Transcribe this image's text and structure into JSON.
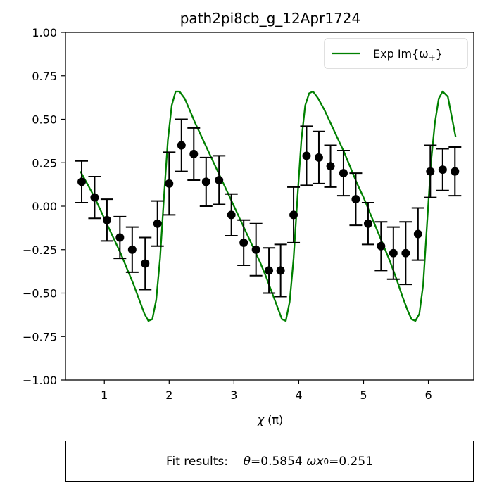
{
  "chart_data": {
    "type": "line",
    "title": "path2pi8cb_g_12Apr1724",
    "xlabel_symbol": "χ",
    "xlabel_unit": "(π)",
    "xlim": [
      0.4,
      6.7
    ],
    "ylim": [
      -1.0,
      1.0
    ],
    "x_ticks": [
      1,
      2,
      3,
      4,
      5,
      6
    ],
    "y_ticks": [
      1.0,
      0.75,
      0.5,
      0.25,
      0.0,
      -0.25,
      -0.5,
      -0.75,
      -1.0
    ],
    "y_tick_labels": [
      "1.00",
      "0.75",
      "0.50",
      "0.25",
      "0.00",
      "−0.25",
      "−0.50",
      "−0.75",
      "−1.00"
    ],
    "grid": false,
    "legend": {
      "placement": "top-right",
      "entries": [
        {
          "label": "Exp Im{ω₊}",
          "text_main": "Exp Im{ω",
          "text_sub": "+",
          "text_end": "}",
          "color": "#008000"
        }
      ]
    },
    "series": [
      {
        "kind": "line",
        "color": "#008000",
        "x": [
          0.63,
          0.75,
          0.85,
          0.95,
          1.05,
          1.15,
          1.25,
          1.35,
          1.45,
          1.55,
          1.62,
          1.68,
          1.74,
          1.8,
          1.86,
          1.92,
          1.98,
          2.04,
          2.1,
          2.16,
          2.24,
          2.32,
          2.4,
          2.5,
          2.6,
          2.7,
          2.8,
          2.9,
          3.0,
          3.1,
          3.2,
          3.3,
          3.4,
          3.5,
          3.6,
          3.68,
          3.74,
          3.8,
          3.86,
          3.92,
          3.98,
          4.04,
          4.1,
          4.16,
          4.22,
          4.3,
          4.4,
          4.5,
          4.6,
          4.7,
          4.8,
          4.9,
          5.0,
          5.1,
          5.2,
          5.3,
          5.4,
          5.5,
          5.6,
          5.68,
          5.74,
          5.8,
          5.86,
          5.92,
          5.98,
          6.04,
          6.1,
          6.16,
          6.22,
          6.3,
          6.42
        ],
        "y": [
          0.2,
          0.12,
          0.05,
          -0.03,
          -0.11,
          -0.19,
          -0.27,
          -0.36,
          -0.45,
          -0.55,
          -0.62,
          -0.66,
          -0.65,
          -0.54,
          -0.3,
          0.05,
          0.38,
          0.58,
          0.66,
          0.66,
          0.62,
          0.55,
          0.48,
          0.4,
          0.32,
          0.24,
          0.16,
          0.08,
          0.0,
          -0.08,
          -0.16,
          -0.24,
          -0.32,
          -0.41,
          -0.51,
          -0.59,
          -0.65,
          -0.66,
          -0.55,
          -0.3,
          0.05,
          0.38,
          0.58,
          0.65,
          0.66,
          0.62,
          0.55,
          0.47,
          0.39,
          0.31,
          0.22,
          0.13,
          0.05,
          -0.04,
          -0.13,
          -0.22,
          -0.31,
          -0.41,
          -0.52,
          -0.6,
          -0.65,
          -0.66,
          -0.62,
          -0.45,
          -0.1,
          0.25,
          0.48,
          0.62,
          0.66,
          0.63,
          0.4
        ]
      },
      {
        "kind": "errorbar",
        "color": "#000000",
        "x": [
          0.65,
          0.85,
          1.04,
          1.24,
          1.43,
          1.63,
          1.82,
          2.0,
          2.19,
          2.38,
          2.57,
          2.77,
          2.96,
          3.15,
          3.34,
          3.54,
          3.72,
          3.92,
          4.12,
          4.31,
          4.49,
          4.69,
          4.88,
          5.07,
          5.27,
          5.46,
          5.65,
          5.84,
          6.03,
          6.22,
          6.41
        ],
        "y": [
          0.14,
          0.05,
          -0.08,
          -0.18,
          -0.25,
          -0.33,
          -0.1,
          0.13,
          0.35,
          0.3,
          0.14,
          0.15,
          -0.05,
          -0.21,
          -0.25,
          -0.37,
          -0.37,
          -0.05,
          0.29,
          0.28,
          0.23,
          0.19,
          0.04,
          -0.1,
          -0.23,
          -0.27,
          -0.27,
          -0.16,
          0.2,
          0.21,
          0.2
        ],
        "err": [
          0.12,
          0.12,
          0.12,
          0.12,
          0.13,
          0.15,
          0.13,
          0.18,
          0.15,
          0.15,
          0.14,
          0.14,
          0.12,
          0.13,
          0.15,
          0.13,
          0.15,
          0.16,
          0.17,
          0.15,
          0.12,
          0.13,
          0.15,
          0.12,
          0.14,
          0.15,
          0.18,
          0.15,
          0.15,
          0.12,
          0.14
        ]
      }
    ]
  },
  "fit_results": {
    "label": "Fit results:",
    "theta_symbol": "θ",
    "theta_value": "=0.5854",
    "omega_symbol": "ωx",
    "omega_sub": "0",
    "omega_value": "=0.251"
  }
}
